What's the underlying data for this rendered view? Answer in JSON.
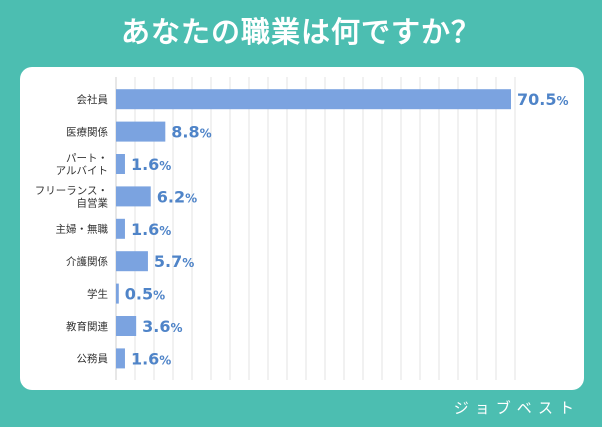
{
  "title": "あなたの職業は何ですか？",
  "brand": "ジョブベスト",
  "colors": {
    "background": "#4cbeb1",
    "bar": "#7ba3e0",
    "value_text": "#4f84c8",
    "label_text": "#333333",
    "grid": "#e3e3e3"
  },
  "chart_data": {
    "type": "bar",
    "orientation": "horizontal",
    "title": "",
    "xlabel": "",
    "ylabel": "",
    "xlim": [
      0,
      70.5
    ],
    "grid": true,
    "legend": "none",
    "categories": [
      [
        "会社員"
      ],
      [
        "医療関係"
      ],
      [
        "パート・",
        "アルバイト"
      ],
      [
        "フリーランス・",
        "自営業"
      ],
      [
        "主婦・無職"
      ],
      [
        "介護関係"
      ],
      [
        "学生"
      ],
      [
        "教育関連"
      ],
      [
        "公務員"
      ]
    ],
    "values": [
      70.5,
      8.8,
      1.6,
      6.2,
      1.6,
      5.7,
      0.5,
      3.6,
      1.6
    ],
    "value_labels": [
      "70.5",
      "8.8",
      "1.6",
      "6.2",
      "1.6",
      "5.7",
      "0.5",
      "3.6",
      "1.6"
    ],
    "unit": "%"
  }
}
